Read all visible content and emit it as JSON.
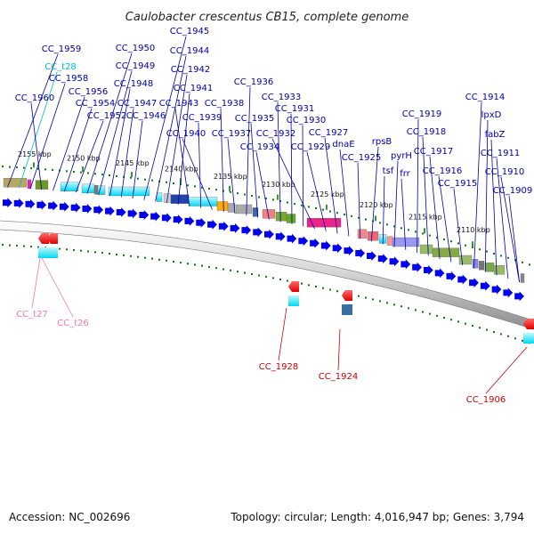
{
  "title": "Caulobacter crescentus CB15, complete genome",
  "footer": {
    "accession": "Accession: NC_002696",
    "summary": "Topology: circular; Length: 4,016,947 bp; Genes: 3,794"
  },
  "colors": {
    "gene_label": "#0000aa",
    "trna_label": "#00bbdd",
    "pink_label": "#f07aa8",
    "red_label": "#cc0000",
    "forward_arrow": "#0000ee",
    "ruler_tick": "#339933",
    "ruler_dot": "#117711"
  },
  "ruler_ticks": [
    {
      "kbp": 2155,
      "label": "2155 kbp"
    },
    {
      "kbp": 2150,
      "label": "2150 kbp"
    },
    {
      "kbp": 2145,
      "label": "2145 kbp"
    },
    {
      "kbp": 2140,
      "label": "2140 kbp"
    },
    {
      "kbp": 2135,
      "label": "2135 kbp"
    },
    {
      "kbp": 2130,
      "label": "2130 kbp"
    },
    {
      "kbp": 2125,
      "label": "2125 kbp"
    },
    {
      "kbp": 2120,
      "label": "2120 kbp"
    },
    {
      "kbp": 2115,
      "label": "2115 kbp"
    },
    {
      "kbp": 2110,
      "label": "2110 kbp"
    }
  ],
  "upper_labels": [
    {
      "text": "CC_1959",
      "kind": "gene"
    },
    {
      "text": "CC_t28",
      "kind": "trna"
    },
    {
      "text": "CC_1958",
      "kind": "gene"
    },
    {
      "text": "CC_1960",
      "kind": "gene"
    },
    {
      "text": "CC_1956",
      "kind": "gene"
    },
    {
      "text": "CC_1954",
      "kind": "gene"
    },
    {
      "text": "CC_1952",
      "kind": "gene"
    },
    {
      "text": "CC_1950",
      "kind": "gene"
    },
    {
      "text": "CC_1949",
      "kind": "gene"
    },
    {
      "text": "CC_1948",
      "kind": "gene"
    },
    {
      "text": "CC_1947",
      "kind": "gene"
    },
    {
      "text": "CC_1946",
      "kind": "gene"
    },
    {
      "text": "CC_1945",
      "kind": "gene"
    },
    {
      "text": "CC_1944",
      "kind": "gene"
    },
    {
      "text": "CC_1942",
      "kind": "gene"
    },
    {
      "text": "CC_1941",
      "kind": "gene"
    },
    {
      "text": "CC_1943",
      "kind": "gene"
    },
    {
      "text": "CC_1939",
      "kind": "gene"
    },
    {
      "text": "CC_1940",
      "kind": "gene"
    },
    {
      "text": "CC_1938",
      "kind": "gene"
    },
    {
      "text": "CC_1937",
      "kind": "gene"
    },
    {
      "text": "CC_1936",
      "kind": "gene"
    },
    {
      "text": "CC_1935",
      "kind": "gene"
    },
    {
      "text": "CC_1934",
      "kind": "gene"
    },
    {
      "text": "CC_1933",
      "kind": "gene"
    },
    {
      "text": "CC_1931",
      "kind": "gene"
    },
    {
      "text": "CC_1930",
      "kind": "gene"
    },
    {
      "text": "CC_1932",
      "kind": "gene"
    },
    {
      "text": "CC_1929",
      "kind": "gene"
    },
    {
      "text": "CC_1927",
      "kind": "gene"
    },
    {
      "text": "dnaE",
      "kind": "gene"
    },
    {
      "text": "CC_1925",
      "kind": "gene"
    },
    {
      "text": "rpsB",
      "kind": "gene"
    },
    {
      "text": "tsf",
      "kind": "gene"
    },
    {
      "text": "pyrH",
      "kind": "gene"
    },
    {
      "text": "frr",
      "kind": "gene"
    },
    {
      "text": "CC_1919",
      "kind": "gene"
    },
    {
      "text": "CC_1918",
      "kind": "gene"
    },
    {
      "text": "CC_1917",
      "kind": "gene"
    },
    {
      "text": "CC_1916",
      "kind": "gene"
    },
    {
      "text": "CC_1915",
      "kind": "gene"
    },
    {
      "text": "CC_1914",
      "kind": "gene"
    },
    {
      "text": "lpxD",
      "kind": "gene"
    },
    {
      "text": "fabZ",
      "kind": "gene"
    },
    {
      "text": "CC_1911",
      "kind": "gene"
    },
    {
      "text": "CC_1910",
      "kind": "gene"
    },
    {
      "text": "CC_1909",
      "kind": "gene"
    }
  ],
  "lower_labels": [
    {
      "text": "CC_t27",
      "kind": "pink"
    },
    {
      "text": "CC_t26",
      "kind": "pink"
    },
    {
      "text": "CC_1928",
      "kind": "red"
    },
    {
      "text": "CC_1924",
      "kind": "red"
    },
    {
      "text": "CC_1906",
      "kind": "red"
    }
  ],
  "forward_genes": [
    {
      "name": "CC_1960"
    },
    {
      "name": "CC_1959"
    },
    {
      "name": "CC_1958"
    },
    {
      "name": "CC_1956"
    },
    {
      "name": "CC_1954"
    },
    {
      "name": "CC_1952"
    },
    {
      "name": "CC_1950"
    },
    {
      "name": "CC_1949"
    },
    {
      "name": "CC_1948"
    },
    {
      "name": "CC_1947"
    },
    {
      "name": "CC_1946"
    },
    {
      "name": "CC_1945"
    },
    {
      "name": "CC_1944"
    },
    {
      "name": "CC_1943"
    },
    {
      "name": "CC_1942"
    },
    {
      "name": "CC_1941"
    },
    {
      "name": "CC_1940"
    },
    {
      "name": "CC_1939"
    },
    {
      "name": "CC_1938"
    },
    {
      "name": "CC_1937"
    },
    {
      "name": "CC_1936"
    },
    {
      "name": "CC_1935"
    },
    {
      "name": "CC_1934"
    },
    {
      "name": "CC_1933"
    },
    {
      "name": "CC_1932"
    },
    {
      "name": "CC_1931"
    },
    {
      "name": "CC_1930"
    },
    {
      "name": "CC_1929"
    },
    {
      "name": "CC_1927"
    },
    {
      "name": "dnaE"
    },
    {
      "name": "CC_1925"
    },
    {
      "name": "rpsB"
    },
    {
      "name": "tsf"
    },
    {
      "name": "pyrH"
    },
    {
      "name": "frr"
    },
    {
      "name": "CC_1919"
    },
    {
      "name": "CC_1918"
    },
    {
      "name": "CC_1917"
    },
    {
      "name": "CC_1916"
    },
    {
      "name": "CC_1915"
    },
    {
      "name": "CC_1914"
    },
    {
      "name": "lpxD"
    },
    {
      "name": "fabZ"
    },
    {
      "name": "CC_1911"
    },
    {
      "name": "CC_1910"
    },
    {
      "name": "CC_1909"
    }
  ],
  "reverse_genes": [
    {
      "name": "CC_t27"
    },
    {
      "name": "CC_t26"
    },
    {
      "name": "CC_1928"
    },
    {
      "name": "CC_1924"
    },
    {
      "name": "CC_1906"
    }
  ]
}
